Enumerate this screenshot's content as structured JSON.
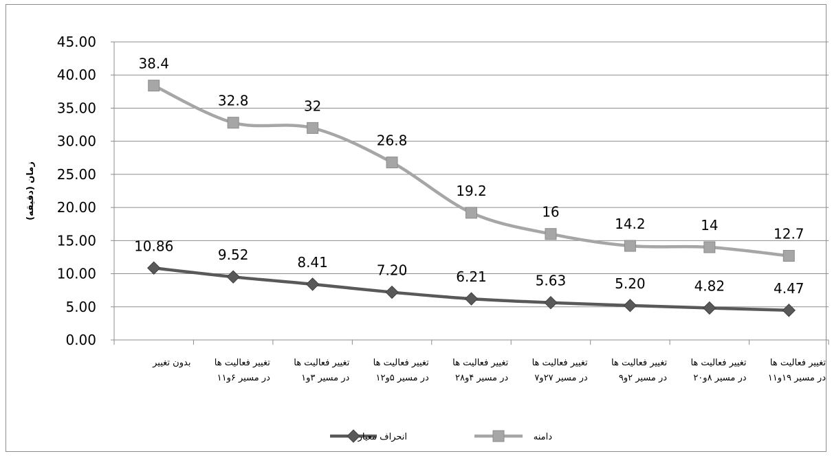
{
  "chart_data": {
    "type": "line",
    "title": "",
    "xlabel": "",
    "ylabel": "زمان (دقیقه)",
    "ylim": [
      0,
      45
    ],
    "yticks": [
      "0.00",
      "5.00",
      "10.00",
      "15.00",
      "20.00",
      "25.00",
      "30.00",
      "35.00",
      "40.00",
      "45.00"
    ],
    "grid": true,
    "legend_position": "bottom",
    "categories": [
      [
        "بدون تغییر"
      ],
      [
        "تغییر فعالیت ها",
        "در مسیر ۶و۱۱"
      ],
      [
        "تغییر فعالیت ها",
        "در مسیر ۳و۱"
      ],
      [
        "تغییر فعالیت ها",
        "در مسیر ۵و۱۲"
      ],
      [
        "تغییر فعالیت ها",
        "در مسیر ۴و۲۸"
      ],
      [
        "تغییر فعالیت ها",
        "در مسیر ۲۷و۷"
      ],
      [
        "تغییر فعالیت ها",
        "در مسیر ۲و۹"
      ],
      [
        "تغییر فعالیت ها",
        "در مسیر ۸و۲۰"
      ],
      [
        "تغییر فعالیت ها",
        "در مسیر ۱۹و۱۱"
      ]
    ],
    "series": [
      {
        "name": "دامنه",
        "color": "#a6a6a6",
        "marker": "square",
        "values": [
          38.4,
          32.8,
          32,
          26.8,
          19.2,
          16,
          14.2,
          14,
          12.7
        ],
        "labels": [
          "38.4",
          "32.8",
          "32",
          "26.8",
          "19.2",
          "16",
          "14.2",
          "14",
          "12.7"
        ]
      },
      {
        "name": "انحراف معیار",
        "color": "#595959",
        "marker": "diamond",
        "values": [
          10.86,
          9.52,
          8.41,
          7.2,
          6.21,
          5.63,
          5.2,
          4.82,
          4.47
        ],
        "labels": [
          "10.86",
          "9.52",
          "8.41",
          "7.20",
          "6.21",
          "5.63",
          "5.20",
          "4.82",
          "4.47"
        ]
      }
    ]
  }
}
